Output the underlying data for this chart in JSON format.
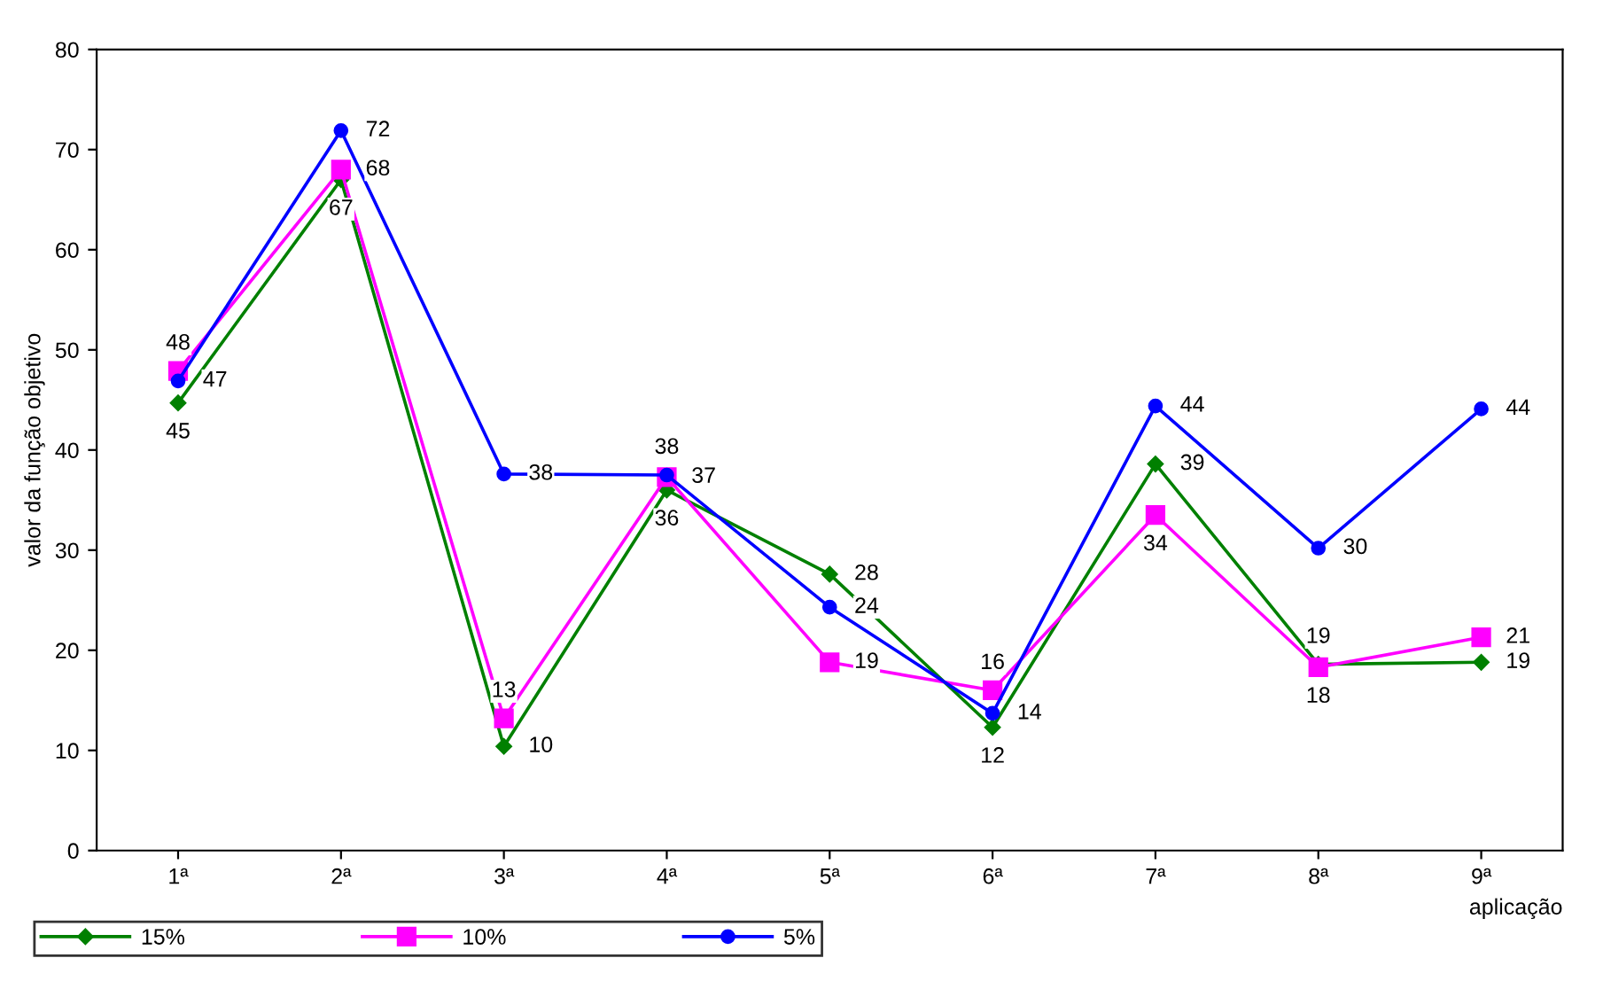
{
  "chart_data": {
    "type": "line",
    "ylabel": "valor da função objetivo",
    "xlabel": "aplicação",
    "categories": [
      "1ª",
      "2ª",
      "3ª",
      "4ª",
      "5ª",
      "6ª",
      "7ª",
      "8ª",
      "9ª"
    ],
    "ylim": [
      0,
      80
    ],
    "yticks": [
      0,
      10,
      20,
      30,
      40,
      50,
      60,
      70,
      80
    ],
    "grid": false,
    "legend": "bottom",
    "line_style": "solid",
    "series": [
      {
        "name": "15%",
        "color": "#008000",
        "marker": "diamond",
        "values": [
          44.7,
          67,
          10.4,
          36,
          27.6,
          12.3,
          38.6,
          18.6,
          18.8
        ],
        "value_labels": [
          "45",
          "67",
          "10",
          "36",
          "28",
          "12",
          "39",
          "19",
          "19"
        ]
      },
      {
        "name": "10%",
        "color": "#ff00ff",
        "marker": "square",
        "values": [
          47.9,
          68,
          13.2,
          37.3,
          18.8,
          16,
          33.5,
          18.3,
          21.3
        ],
        "value_labels": [
          "48",
          "68",
          "13",
          "37",
          "19",
          "16",
          "34",
          "18",
          "21"
        ]
      },
      {
        "name": "5%",
        "color": "#0000ff",
        "marker": "circle",
        "values": [
          46.9,
          71.9,
          37.6,
          37.5,
          24.3,
          13.7,
          44.4,
          30.2,
          44.1
        ],
        "value_labels": [
          "47",
          "72",
          "38",
          "38",
          "24",
          "14",
          "44",
          "30",
          "44"
        ]
      }
    ]
  }
}
